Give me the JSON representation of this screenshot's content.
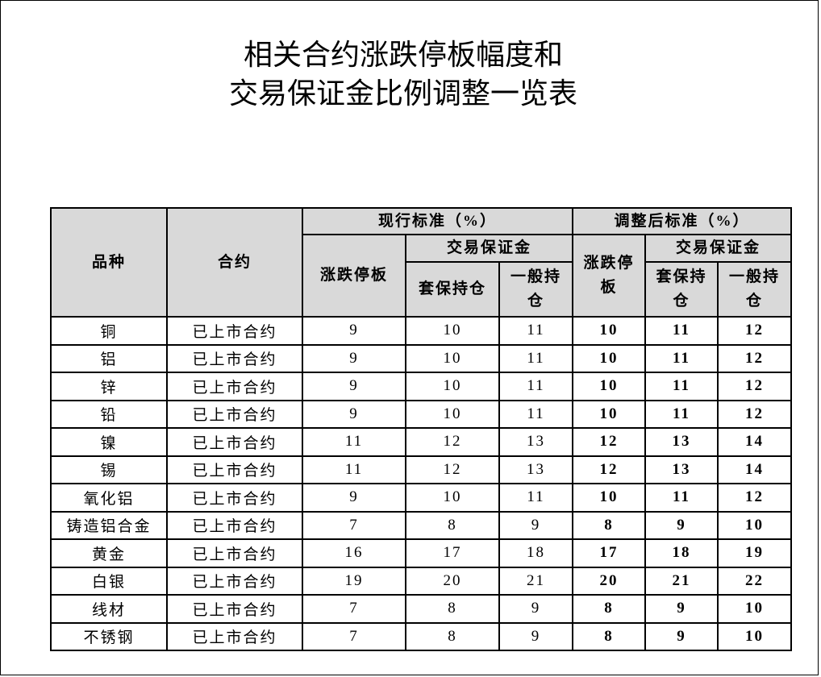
{
  "title": {
    "line1": "相关合约涨跌停板幅度和",
    "line2": "交易保证金比例调整一览表"
  },
  "header": {
    "variety": "品种",
    "contract": "合约",
    "current": "现行标准（%）",
    "adjusted": "调整后标准（%）",
    "limit": "涨跌停板",
    "margin": "交易保证金",
    "hedge": "套保持仓",
    "general": "一般持仓"
  },
  "rows": [
    {
      "variety": "铜",
      "contract": "已上市合约",
      "cur": [
        "9",
        "10",
        "11"
      ],
      "adj": [
        "10",
        "11",
        "12"
      ]
    },
    {
      "variety": "铝",
      "contract": "已上市合约",
      "cur": [
        "9",
        "10",
        "11"
      ],
      "adj": [
        "10",
        "11",
        "12"
      ]
    },
    {
      "variety": "锌",
      "contract": "已上市合约",
      "cur": [
        "9",
        "10",
        "11"
      ],
      "adj": [
        "10",
        "11",
        "12"
      ]
    },
    {
      "variety": "铅",
      "contract": "已上市合约",
      "cur": [
        "9",
        "10",
        "11"
      ],
      "adj": [
        "10",
        "11",
        "12"
      ]
    },
    {
      "variety": "镍",
      "contract": "已上市合约",
      "cur": [
        "11",
        "12",
        "13"
      ],
      "adj": [
        "12",
        "13",
        "14"
      ]
    },
    {
      "variety": "锡",
      "contract": "已上市合约",
      "cur": [
        "11",
        "12",
        "13"
      ],
      "adj": [
        "12",
        "13",
        "14"
      ]
    },
    {
      "variety": "氧化铝",
      "contract": "已上市合约",
      "cur": [
        "9",
        "10",
        "11"
      ],
      "adj": [
        "10",
        "11",
        "12"
      ]
    },
    {
      "variety": "铸造铝合金",
      "contract": "已上市合约",
      "cur": [
        "7",
        "8",
        "9"
      ],
      "adj": [
        "8",
        "9",
        "10"
      ]
    },
    {
      "variety": "黄金",
      "contract": "已上市合约",
      "cur": [
        "16",
        "17",
        "18"
      ],
      "adj": [
        "17",
        "18",
        "19"
      ]
    },
    {
      "variety": "白银",
      "contract": "已上市合约",
      "cur": [
        "19",
        "20",
        "21"
      ],
      "adj": [
        "20",
        "21",
        "22"
      ]
    },
    {
      "variety": "线材",
      "contract": "已上市合约",
      "cur": [
        "7",
        "8",
        "9"
      ],
      "adj": [
        "8",
        "9",
        "10"
      ]
    },
    {
      "variety": "不锈钢",
      "contract": "已上市合约",
      "cur": [
        "7",
        "8",
        "9"
      ],
      "adj": [
        "8",
        "9",
        "10"
      ]
    }
  ]
}
